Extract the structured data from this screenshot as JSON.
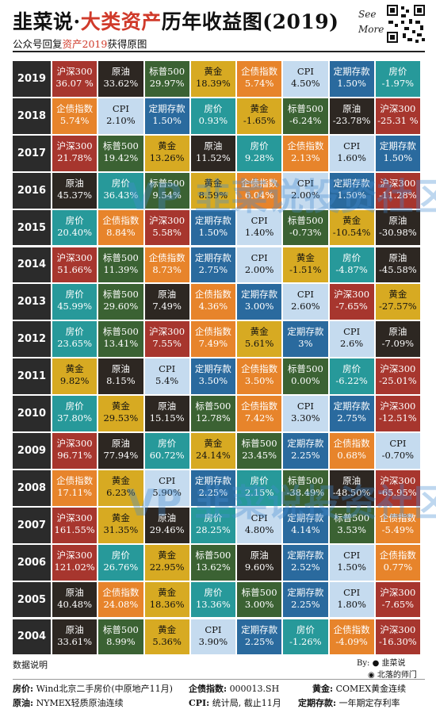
{
  "header": {
    "title_part1": "韭菜说·",
    "title_part2": "大类资产",
    "title_part3": "历年收益图(2019)",
    "see": "See",
    "more": "More",
    "subtitle_part1": "公众号回复",
    "subtitle_part2": "资产2019",
    "subtitle_part3": "获得原图"
  },
  "colors": {
    "沪深300": "#a7362e",
    "原油": "#2d2722",
    "标普500": "#3b6233",
    "黄金": "#d7aa22",
    "企债指数": "#e7842b",
    "CPI": "#c5dbef",
    "定期存款": "#2a6a9e",
    "房价": "#27999a"
  },
  "text_colors": {
    "CPI": "#111111",
    "黄金": "#111111",
    "default": "#ffffff"
  },
  "chart_data": {
    "type": "table",
    "title": "大类资产历年收益图(2019)",
    "rows": [
      {
        "year": "2019",
        "cells": [
          [
            "沪深300",
            "36.07 %"
          ],
          [
            "原油",
            "33.62%"
          ],
          [
            "标普500",
            "29.97%"
          ],
          [
            "黄金",
            "18.39%"
          ],
          [
            "企债指数",
            "5.74%"
          ],
          [
            "CPI",
            "4.50%"
          ],
          [
            "定期存款",
            "1.50%"
          ],
          [
            "房价",
            "-1.97%"
          ]
        ]
      },
      {
        "year": "2018",
        "cells": [
          [
            "企债指数",
            "5.74%"
          ],
          [
            "CPI",
            "2.10%"
          ],
          [
            "定期存款",
            "1.50%"
          ],
          [
            "房价",
            "0.93%"
          ],
          [
            "黄金",
            "-1.65%"
          ],
          [
            "标普500",
            "-6.24%"
          ],
          [
            "原油",
            "-23.78%"
          ],
          [
            "沪深300",
            "-25.31 %"
          ]
        ]
      },
      {
        "year": "2017",
        "cells": [
          [
            "沪深300",
            "21.78%"
          ],
          [
            "标普500",
            "19.42%"
          ],
          [
            "黄金",
            "13.26%"
          ],
          [
            "原油",
            "11.52%"
          ],
          [
            "房价",
            "9.28%"
          ],
          [
            "企债指数",
            "2.13%"
          ],
          [
            "CPI",
            "1.60%"
          ],
          [
            "定期存款",
            "1.50%"
          ]
        ]
      },
      {
        "year": "2016",
        "cells": [
          [
            "原油",
            "45.37%"
          ],
          [
            "房价",
            "36.43%"
          ],
          [
            "标普500",
            "9.54%"
          ],
          [
            "黄金",
            "8.59%"
          ],
          [
            "企债指数",
            "6.04%"
          ],
          [
            "CPI",
            "2.00%"
          ],
          [
            "定期存款",
            "1.50%"
          ],
          [
            "沪深300",
            "-11.28%"
          ]
        ]
      },
      {
        "year": "2015",
        "cells": [
          [
            "房价",
            "20.40%"
          ],
          [
            "企债指数",
            "8.84%"
          ],
          [
            "沪深300",
            "5.58%"
          ],
          [
            "定期存款",
            "1.50%"
          ],
          [
            "CPI",
            "1.40%"
          ],
          [
            "标普500",
            "-0.73%"
          ],
          [
            "黄金",
            "-10.54%"
          ],
          [
            "原油",
            "-30.98%"
          ]
        ]
      },
      {
        "year": "2014",
        "cells": [
          [
            "沪深300",
            "51.66%"
          ],
          [
            "标普500",
            "11.39%"
          ],
          [
            "企债指数",
            "8.73%"
          ],
          [
            "定期存款",
            "2.75%"
          ],
          [
            "CPI",
            "2.00%"
          ],
          [
            "黄金",
            "-1.51%"
          ],
          [
            "房价",
            "-4.87%"
          ],
          [
            "原油",
            "-45.58%"
          ]
        ]
      },
      {
        "year": "2013",
        "cells": [
          [
            "房价",
            "45.99%"
          ],
          [
            "标普500",
            "29.60%"
          ],
          [
            "原油",
            "7.49%"
          ],
          [
            "企债指数",
            "4.36%"
          ],
          [
            "定期存款",
            "3.00%"
          ],
          [
            "CPI",
            "2.60%"
          ],
          [
            "沪深300",
            "-7.65%"
          ],
          [
            "黄金",
            "-27.57%"
          ]
        ]
      },
      {
        "year": "2012",
        "cells": [
          [
            "房价",
            "23.65%"
          ],
          [
            "标普500",
            "13.41%"
          ],
          [
            "沪深300",
            "7.55%"
          ],
          [
            "企债指数",
            "7.49%"
          ],
          [
            "黄金",
            "5.61%"
          ],
          [
            "定期存款",
            "3%"
          ],
          [
            "CPI",
            "2.6%"
          ],
          [
            "原油",
            "-7.09%"
          ]
        ]
      },
      {
        "year": "2011",
        "cells": [
          [
            "黄金",
            "9.82%"
          ],
          [
            "原油",
            "8.15%"
          ],
          [
            "CPI",
            "5.4%"
          ],
          [
            "定期存款",
            "3.50%"
          ],
          [
            "企债指数",
            "3.50%"
          ],
          [
            "标普500",
            "0.00%"
          ],
          [
            "房价",
            "-6.22%"
          ],
          [
            "沪深300",
            "-25.01%"
          ]
        ]
      },
      {
        "year": "2010",
        "cells": [
          [
            "房价",
            "37.80%"
          ],
          [
            "黄金",
            "29.53%"
          ],
          [
            "原油",
            "15.15%"
          ],
          [
            "标普500",
            "12.78%"
          ],
          [
            "企债指数",
            "7.42%"
          ],
          [
            "CPI",
            "3.30%"
          ],
          [
            "定期存款",
            "2.75%"
          ],
          [
            "沪深300",
            "-12.51%"
          ]
        ]
      },
      {
        "year": "2009",
        "cells": [
          [
            "沪深300",
            "96.71%"
          ],
          [
            "原油",
            "77.94%"
          ],
          [
            "房价",
            "60.72%"
          ],
          [
            "黄金",
            "24.14%"
          ],
          [
            "标普500",
            "23.45%"
          ],
          [
            "定期存款",
            "2.25%"
          ],
          [
            "企债指数",
            "0.68%"
          ],
          [
            "CPI",
            "-0.70%"
          ]
        ]
      },
      {
        "year": "2008",
        "cells": [
          [
            "企债指数",
            "17.11%"
          ],
          [
            "黄金",
            "6.23%"
          ],
          [
            "CPI",
            "5.90%"
          ],
          [
            "定期存款",
            "2.25%"
          ],
          [
            "房价",
            "2.15%"
          ],
          [
            "标普500",
            "-38.49%"
          ],
          [
            "原油",
            "-48.50%"
          ],
          [
            "沪深300",
            "-65.95%"
          ]
        ]
      },
      {
        "year": "2007",
        "cells": [
          [
            "沪深300",
            "161.55%"
          ],
          [
            "黄金",
            "31.35%"
          ],
          [
            "原油",
            "29.46%"
          ],
          [
            "房价",
            "28.25%"
          ],
          [
            "CPI",
            "4.80%"
          ],
          [
            "定期存款",
            "4.14%"
          ],
          [
            "标普500",
            "3.53%"
          ],
          [
            "企债指数",
            "-5.49%"
          ]
        ]
      },
      {
        "year": "2006",
        "cells": [
          [
            "沪深300",
            "121.02%"
          ],
          [
            "房价",
            "26.76%"
          ],
          [
            "黄金",
            "22.95%"
          ],
          [
            "标普500",
            "13.62%"
          ],
          [
            "原油",
            "9.60%"
          ],
          [
            "定期存款",
            "2.52%"
          ],
          [
            "CPI",
            "1.50%"
          ],
          [
            "企债指数",
            "0.77%"
          ]
        ]
      },
      {
        "year": "2005",
        "cells": [
          [
            "原油",
            "40.48%"
          ],
          [
            "企债指数",
            "24.08%"
          ],
          [
            "黄金",
            "18.36%"
          ],
          [
            "房价",
            "13.36%"
          ],
          [
            "标普500",
            "3.00%"
          ],
          [
            "定期存款",
            "2.25%"
          ],
          [
            "CPI",
            "1.80%"
          ],
          [
            "沪深300",
            "-7.65%"
          ]
        ]
      },
      {
        "year": "2004",
        "cells": [
          [
            "原油",
            "33.61%"
          ],
          [
            "标普500",
            "8.99%"
          ],
          [
            "黄金",
            "5.36%"
          ],
          [
            "CPI",
            "3.90%"
          ],
          [
            "定期存款",
            "2.25%"
          ],
          [
            "房价",
            "-1.26%"
          ],
          [
            "企债指数",
            "-4.09%"
          ],
          [
            "沪深300",
            "-16.30%"
          ]
        ]
      }
    ]
  },
  "watermark": "VP 韭菜说投资社区",
  "footer": {
    "data_note": "数据说明",
    "by": "By:",
    "by_name": "韭菜说",
    "by2": "北落的师门",
    "notes": {
      "house_label": "房价:",
      "house_text": "Wind北京二手房价(中原地产11月)",
      "bond_label": "企债指数:",
      "bond_text": "000013.SH",
      "gold_label": "黄金:",
      "gold_text": "COMEX黄金连续",
      "oil_label": "原油:",
      "oil_text": "NYMEX轻质原油连续",
      "cpi_label": "CPI:",
      "cpi_text": "统计局, 截止11月",
      "deposit_label": "定期存款:",
      "deposit_text": "一年期定存利率"
    }
  }
}
